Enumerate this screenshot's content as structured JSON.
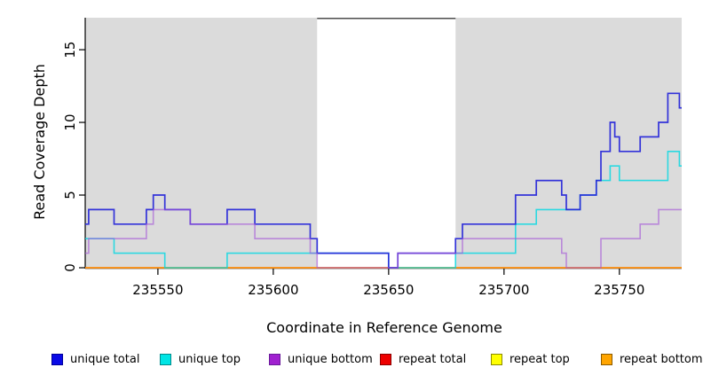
{
  "chart_data": {
    "type": "line",
    "subtype": "step-coverage",
    "title": "",
    "xlabel": "Coordinate in Reference Genome",
    "ylabel": "Read Coverage Depth",
    "xlim": [
      235518.5,
      235777
    ],
    "ylim": [
      0,
      17.2
    ],
    "x_end": 235777,
    "grid": false,
    "panel_color": "#DBDBDB",
    "gap_topline_color": "#4D4D4D",
    "shaded_regions": [
      [
        235518.5,
        235619
      ],
      [
        235679,
        235777
      ]
    ],
    "gap_topline": [
      235619,
      235679
    ],
    "xticks": [
      {
        "v": 235550,
        "label": "235550"
      },
      {
        "v": 235600,
        "label": "235600"
      },
      {
        "v": 235650,
        "label": "235650"
      },
      {
        "v": 235700,
        "label": "235700"
      },
      {
        "v": 235750,
        "label": "235750"
      }
    ],
    "yticks": [
      {
        "v": 0,
        "label": "0"
      },
      {
        "v": 5,
        "label": "5"
      },
      {
        "v": 10,
        "label": "10"
      },
      {
        "v": 15,
        "label": "15"
      }
    ],
    "series": [
      {
        "name": "repeat total",
        "color": "#CC2233",
        "alpha": 1,
        "width": 1.5,
        "steps": [
          [
            235518.5,
            0
          ]
        ]
      },
      {
        "name": "repeat top",
        "color": "#FFE800",
        "alpha": 1,
        "width": 1.5,
        "steps": [
          [
            235518.5,
            0
          ]
        ]
      },
      {
        "name": "repeat bottom",
        "color": "#FF8C1A",
        "alpha": 1,
        "width": 1.5,
        "steps": [
          [
            235518.5,
            0
          ]
        ]
      },
      {
        "name": "unique top",
        "color": "#00D8E2",
        "alpha": 0.8,
        "width": 1.6,
        "steps": [
          [
            235518.5,
            2
          ],
          [
            235531,
            1
          ],
          [
            235553,
            0
          ],
          [
            235580,
            1
          ],
          [
            235650,
            0
          ],
          [
            235679,
            1
          ],
          [
            235705,
            3
          ],
          [
            235714,
            4
          ],
          [
            235733,
            5
          ],
          [
            235740,
            6
          ],
          [
            235746,
            7
          ],
          [
            235750,
            6
          ],
          [
            235771,
            8
          ],
          [
            235776,
            7
          ]
        ]
      },
      {
        "name": "unique total",
        "color": "#2626D8",
        "alpha": 0.93,
        "width": 1.7,
        "steps": [
          [
            235518.5,
            3
          ],
          [
            235520,
            4
          ],
          [
            235531,
            3
          ],
          [
            235545,
            4
          ],
          [
            235548,
            5
          ],
          [
            235553,
            4
          ],
          [
            235564,
            3
          ],
          [
            235580,
            4
          ],
          [
            235592,
            3
          ],
          [
            235616,
            2
          ],
          [
            235619,
            1
          ],
          [
            235650,
            0
          ],
          [
            235654,
            1
          ],
          [
            235679,
            2
          ],
          [
            235682,
            3
          ],
          [
            235705,
            5
          ],
          [
            235714,
            6
          ],
          [
            235725,
            5
          ],
          [
            235727,
            4
          ],
          [
            235733,
            5
          ],
          [
            235740,
            6
          ],
          [
            235742,
            8
          ],
          [
            235746,
            10
          ],
          [
            235748,
            9
          ],
          [
            235750,
            8
          ],
          [
            235759,
            9
          ],
          [
            235767,
            10
          ],
          [
            235771,
            12
          ],
          [
            235776,
            11
          ]
        ]
      },
      {
        "name": "unique bottom",
        "color": "#A556D8",
        "alpha": 0.62,
        "width": 1.6,
        "steps": [
          [
            235518.5,
            1
          ],
          [
            235520,
            2
          ],
          [
            235545,
            3
          ],
          [
            235548,
            4
          ],
          [
            235564,
            3
          ],
          [
            235592,
            2
          ],
          [
            235616,
            1
          ],
          [
            235619,
            0
          ],
          [
            235654,
            1
          ],
          [
            235682,
            2
          ],
          [
            235725,
            1
          ],
          [
            235727,
            0
          ],
          [
            235742,
            2
          ],
          [
            235759,
            3
          ],
          [
            235767,
            4
          ]
        ]
      }
    ]
  },
  "legend": {
    "items": [
      {
        "label": "unique total",
        "color": "#0A0AE6",
        "border": "#000099"
      },
      {
        "label": "unique top",
        "color": "#00E5E5",
        "border": "#008B8B"
      },
      {
        "label": "unique bottom",
        "color": "#A020D0",
        "border": "#6A1B9A"
      },
      {
        "label": "repeat total",
        "color": "#EE0000",
        "border": "#8B0000"
      },
      {
        "label": "repeat top",
        "color": "#FFFF00",
        "border": "#8B8B00"
      },
      {
        "label": "repeat bottom",
        "color": "#FFA500",
        "border": "#8B5A00"
      }
    ]
  }
}
